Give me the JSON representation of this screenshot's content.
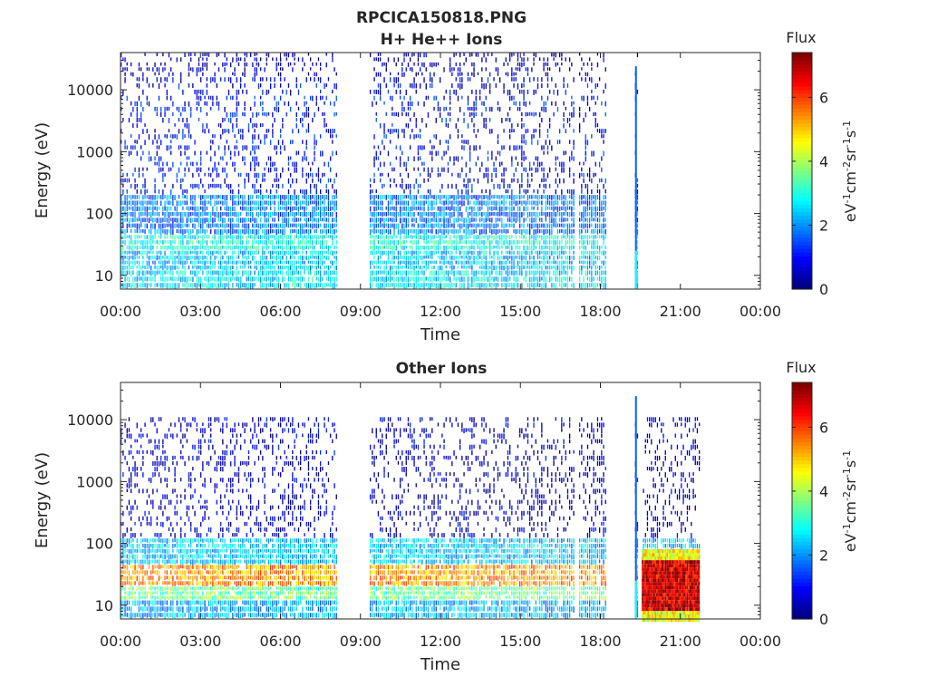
{
  "figure": {
    "file_title": "RPCICA150818.PNG"
  },
  "chart_data": [
    {
      "type": "heatmap",
      "title": "H+ He++ Ions",
      "xlabel": "Time",
      "ylabel": "Energy (eV)",
      "x_ticks": [
        "00:00",
        "03:00",
        "06:00",
        "09:00",
        "12:00",
        "15:00",
        "18:00",
        "21:00",
        "00:00"
      ],
      "x_range_hours": [
        0,
        24
      ],
      "y_scale": "log",
      "y_ticks": [
        "10",
        "100",
        "1000",
        "10000"
      ],
      "y_range": [
        6,
        40000
      ],
      "colorbar": {
        "title": "Flux",
        "label": "eV-1cm-2sr-1s-1",
        "ticks": [
          "0",
          "2",
          "4",
          "6"
        ],
        "range": [
          0,
          7.4
        ],
        "colormap": "jet"
      },
      "data_gaps_hours": [
        [
          8.1,
          9.3
        ],
        [
          17.0,
          17.15
        ],
        [
          18.2,
          19.25
        ],
        [
          19.4,
          24
        ]
      ],
      "spikes_hours": [
        19.3
      ],
      "bands": [
        {
          "emin": 6,
          "emax": 12,
          "flux": 2.6
        },
        {
          "emin": 12,
          "emax": 25,
          "flux": 2.4
        },
        {
          "emin": 25,
          "emax": 45,
          "flux": 2.9
        },
        {
          "emin": 45,
          "emax": 200,
          "flux": 1.8
        },
        {
          "emin": 200,
          "emax": 8000,
          "flux": 0.9
        },
        {
          "emin": 8000,
          "emax": 16000,
          "flux": 0.8
        },
        {
          "emin": 16000,
          "emax": 40000,
          "flux": 0.4
        }
      ],
      "grid": false
    },
    {
      "type": "heatmap",
      "title": "Other Ions",
      "xlabel": "Time",
      "ylabel": "Energy (eV)",
      "x_ticks": [
        "00:00",
        "03:00",
        "06:00",
        "09:00",
        "12:00",
        "15:00",
        "18:00",
        "21:00",
        "00:00"
      ],
      "x_range_hours": [
        0,
        24
      ],
      "y_scale": "log",
      "y_ticks": [
        "10",
        "100",
        "1000",
        "10000"
      ],
      "y_range": [
        6,
        40000
      ],
      "colorbar": {
        "title": "Flux",
        "label": "eV-1cm-2sr-1s-1",
        "ticks": [
          "0",
          "2",
          "4",
          "6"
        ],
        "range": [
          0,
          7.4
        ],
        "colormap": "jet"
      },
      "data_gaps_hours": [
        [
          8.1,
          9.3
        ],
        [
          17.0,
          17.15
        ],
        [
          18.2,
          19.25
        ],
        [
          19.4,
          19.55
        ],
        [
          21.7,
          24
        ]
      ],
      "spikes_hours": [
        19.3
      ],
      "bands": [
        {
          "emin": 6,
          "emax": 12,
          "flux": 2.2
        },
        {
          "emin": 12,
          "emax": 20,
          "flux": 3.6
        },
        {
          "emin": 20,
          "emax": 45,
          "flux": 5.4
        },
        {
          "emin": 45,
          "emax": 120,
          "flux": 2.4
        },
        {
          "emin": 120,
          "emax": 11000,
          "flux": 0.5
        }
      ],
      "burst": {
        "t_start": 19.55,
        "t_end": 21.7,
        "emin": 6,
        "emax": 80,
        "flux": 6.8
      },
      "grid": false
    }
  ]
}
